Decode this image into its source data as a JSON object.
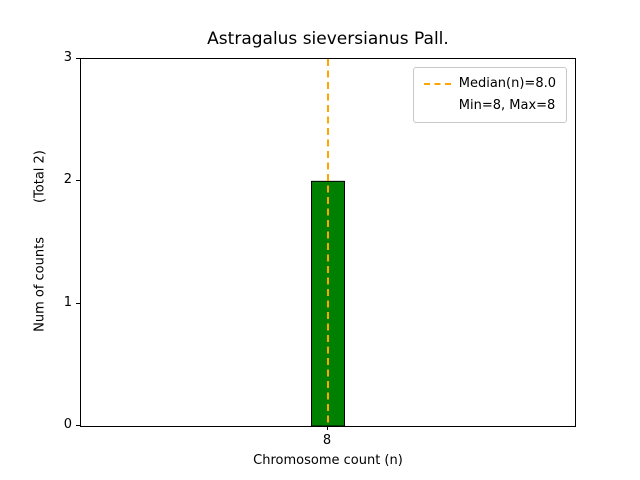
{
  "chart_data": {
    "type": "bar",
    "title": "Astragalus sieversianus Pall.",
    "xlabel": "Chromosome count (n)",
    "ylabel": "Num of counts",
    "ylabel_annotation": "(Total 2)",
    "categories": [
      "8"
    ],
    "values": [
      2
    ],
    "total_counts": 2,
    "ylim": [
      0,
      3
    ],
    "yticks": [
      0,
      1,
      2,
      3
    ],
    "grid": false,
    "bar_color": "#008000",
    "bar_edge_color": "#000000",
    "median_line": {
      "value": 8.0,
      "color": "#FFA500",
      "style": "dashed"
    },
    "min": 8,
    "max": 8,
    "legend": {
      "position": "upper right",
      "entries": [
        {
          "label": "Median(n)=8.0",
          "marker": "dashed-line",
          "color": "#FFA500"
        },
        {
          "label": "Min=8, Max=8",
          "marker": "none"
        }
      ]
    }
  }
}
